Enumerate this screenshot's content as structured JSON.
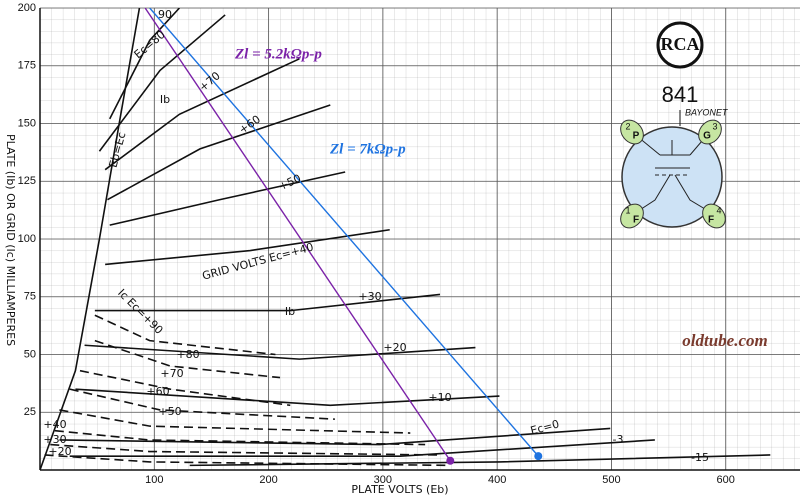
{
  "chart_data": {
    "type": "line",
    "x_label": "PLATE VOLTS (Eb)",
    "y_label": "PLATE (Ib) OR GRID (Ic) MILLIAMPERES",
    "xlim": [
      0,
      665
    ],
    "ylim": [
      0,
      200
    ],
    "xticks": [
      100,
      200,
      300,
      400,
      500,
      600
    ],
    "yticks": [
      25,
      50,
      75,
      100,
      125,
      150,
      175,
      200
    ],
    "grid": true,
    "series": [
      {
        "name": "90",
        "color": "#111111",
        "dashed": false,
        "x": [
          61,
          96,
          122
        ],
        "values": [
          152,
          186,
          200
        ]
      },
      {
        "name": "Ec=80",
        "color": "#111111",
        "dashed": false,
        "x": [
          52,
          105,
          162
        ],
        "values": [
          138,
          173,
          197
        ]
      },
      {
        "name": "+70",
        "color": "#111111",
        "dashed": false,
        "x": [
          57,
          122,
          227
        ],
        "values": [
          130,
          154,
          178
        ]
      },
      {
        "name": "+60",
        "color": "#111111",
        "dashed": false,
        "x": [
          59,
          140,
          254
        ],
        "values": [
          117,
          139,
          158
        ]
      },
      {
        "name": "+50",
        "color": "#111111",
        "dashed": false,
        "x": [
          61,
          157,
          267
        ],
        "values": [
          106,
          117,
          129
        ]
      },
      {
        "name": "GRID VOLTS Ec=+40",
        "color": "#111111",
        "dashed": false,
        "x": [
          57,
          184,
          306
        ],
        "values": [
          89,
          95,
          104
        ]
      },
      {
        "name": "+30",
        "color": "#111111",
        "dashed": false,
        "x": [
          48,
          219,
          350
        ],
        "values": [
          69,
          69,
          76
        ]
      },
      {
        "name": "+20",
        "color": "#111111",
        "dashed": false,
        "x": [
          39,
          227,
          381
        ],
        "values": [
          54,
          48,
          53
        ]
      },
      {
        "name": "+10",
        "color": "#111111",
        "dashed": false,
        "x": [
          31,
          254,
          402
        ],
        "values": [
          35,
          28,
          32
        ]
      },
      {
        "name": "Ec=0",
        "color": "#111111",
        "dashed": false,
        "x": [
          17,
          297,
          499
        ],
        "values": [
          13,
          11,
          18
        ]
      },
      {
        "name": "-3",
        "color": "#111111",
        "dashed": false,
        "x": [
          26,
          315,
          538
        ],
        "values": [
          6,
          6,
          13
        ]
      },
      {
        "name": "-15",
        "color": "#111111",
        "dashed": false,
        "x": [
          131,
          402,
          639
        ],
        "values": [
          2,
          3.5,
          6.5
        ]
      },
      {
        "name": "Ic Ec=+90",
        "color": "#111111",
        "dashed": true,
        "x": [
          48,
          96,
          206
        ],
        "values": [
          67,
          56,
          50
        ]
      },
      {
        "name": "+80",
        "color": "#111111",
        "dashed": true,
        "x": [
          48,
          114,
          210
        ],
        "values": [
          56,
          45,
          40
        ]
      },
      {
        "name": "+70",
        "color": "#111111",
        "dashed": true,
        "x": [
          35,
          114,
          219
        ],
        "values": [
          43,
          35,
          28
        ]
      },
      {
        "name": "+60",
        "color": "#111111",
        "dashed": true,
        "x": [
          26,
          105,
          258
        ],
        "values": [
          35,
          26,
          22
        ]
      },
      {
        "name": "+50",
        "color": "#111111",
        "dashed": true,
        "x": [
          17,
          96,
          324
        ],
        "values": [
          26,
          19,
          16
        ]
      },
      {
        "name": "+40",
        "color": "#111111",
        "dashed": true,
        "x": [
          13,
          96,
          337
        ],
        "values": [
          17,
          13,
          11
        ]
      },
      {
        "name": "+30",
        "color": "#111111",
        "dashed": true,
        "x": [
          9,
          96,
          350
        ],
        "values": [
          11,
          8,
          6.5
        ]
      },
      {
        "name": "+20",
        "color": "#111111",
        "dashed": true,
        "x": [
          4,
          96,
          359
        ],
        "values": [
          6.5,
          3.5,
          2
        ]
      },
      {
        "name": "Eb=Ec",
        "color": "#111111",
        "dashed": false,
        "x": [
          0,
          31,
          52,
          70,
          87
        ],
        "values": [
          0,
          43,
          100,
          152,
          200
        ]
      },
      {
        "name": "Zl = 5.2kΩp-p",
        "color": "#7b22a8",
        "dashed": false,
        "end_dot": true,
        "x": [
          92,
          359
        ],
        "values": [
          200,
          4
        ]
      },
      {
        "name": "Zl = 7kΩp-p",
        "color": "#1e73e0",
        "dashed": false,
        "end_dot": true,
        "x": [
          96,
          436
        ],
        "values": [
          200,
          6
        ]
      }
    ],
    "annotations": [
      "Ib",
      "Ib"
    ],
    "watermark": "oldtube.com",
    "tube": {
      "logo": "RCA",
      "number": "841",
      "base": "BAYONET",
      "pins": [
        {
          "num": "2",
          "sym": "P"
        },
        {
          "num": "3",
          "sym": "G"
        },
        {
          "num": "1",
          "sym": "F"
        },
        {
          "num": "4",
          "sym": "F"
        }
      ]
    }
  }
}
